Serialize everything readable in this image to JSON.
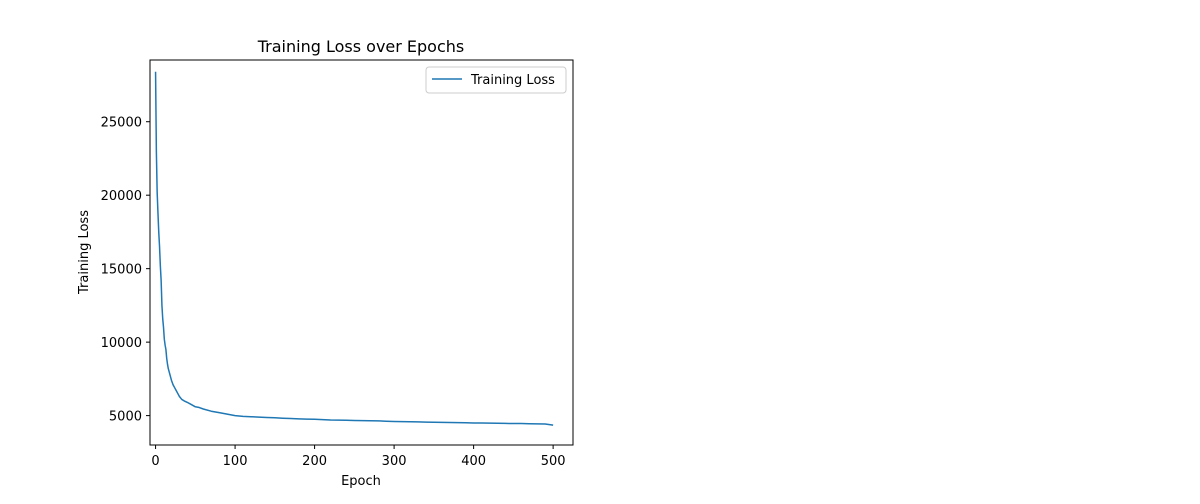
{
  "chart_data": {
    "type": "line",
    "title": "Training Loss over Epochs",
    "xlabel": "Epoch",
    "ylabel": "Training Loss",
    "xlim": [
      -7,
      525
    ],
    "ylim": [
      3000,
      29200
    ],
    "xticks": [
      0,
      100,
      200,
      300,
      400,
      500
    ],
    "yticks": [
      5000,
      10000,
      15000,
      20000,
      25000
    ],
    "grid": false,
    "legend": {
      "position": "top-right"
    },
    "series": [
      {
        "name": "Training Loss",
        "color": "#1f77b4",
        "x": [
          0,
          1,
          2,
          3,
          4,
          5,
          6,
          7,
          8,
          9,
          10,
          11,
          12,
          13,
          14,
          15,
          16,
          18,
          20,
          22,
          24,
          26,
          28,
          30,
          33,
          36,
          40,
          45,
          50,
          55,
          60,
          70,
          80,
          90,
          100,
          110,
          120,
          130,
          140,
          150,
          160,
          170,
          180,
          190,
          200,
          210,
          220,
          230,
          240,
          250,
          260,
          270,
          280,
          290,
          300,
          310,
          320,
          330,
          340,
          350,
          360,
          370,
          380,
          390,
          400,
          410,
          420,
          430,
          440,
          450,
          460,
          470,
          480,
          490,
          500
        ],
        "y": [
          28400,
          23000,
          20200,
          18800,
          17500,
          16500,
          15200,
          14200,
          12500,
          11600,
          11000,
          10200,
          9800,
          9500,
          8900,
          8500,
          8200,
          7800,
          7400,
          7100,
          6900,
          6700,
          6500,
          6300,
          6100,
          6000,
          5900,
          5750,
          5600,
          5550,
          5450,
          5300,
          5200,
          5100,
          5000,
          4950,
          4920,
          4900,
          4870,
          4850,
          4820,
          4800,
          4780,
          4760,
          4750,
          4730,
          4700,
          4690,
          4680,
          4670,
          4660,
          4650,
          4640,
          4620,
          4600,
          4590,
          4580,
          4570,
          4560,
          4550,
          4540,
          4530,
          4520,
          4510,
          4500,
          4500,
          4490,
          4480,
          4470,
          4460,
          4460,
          4450,
          4440,
          4430,
          4350
        ]
      }
    ]
  }
}
